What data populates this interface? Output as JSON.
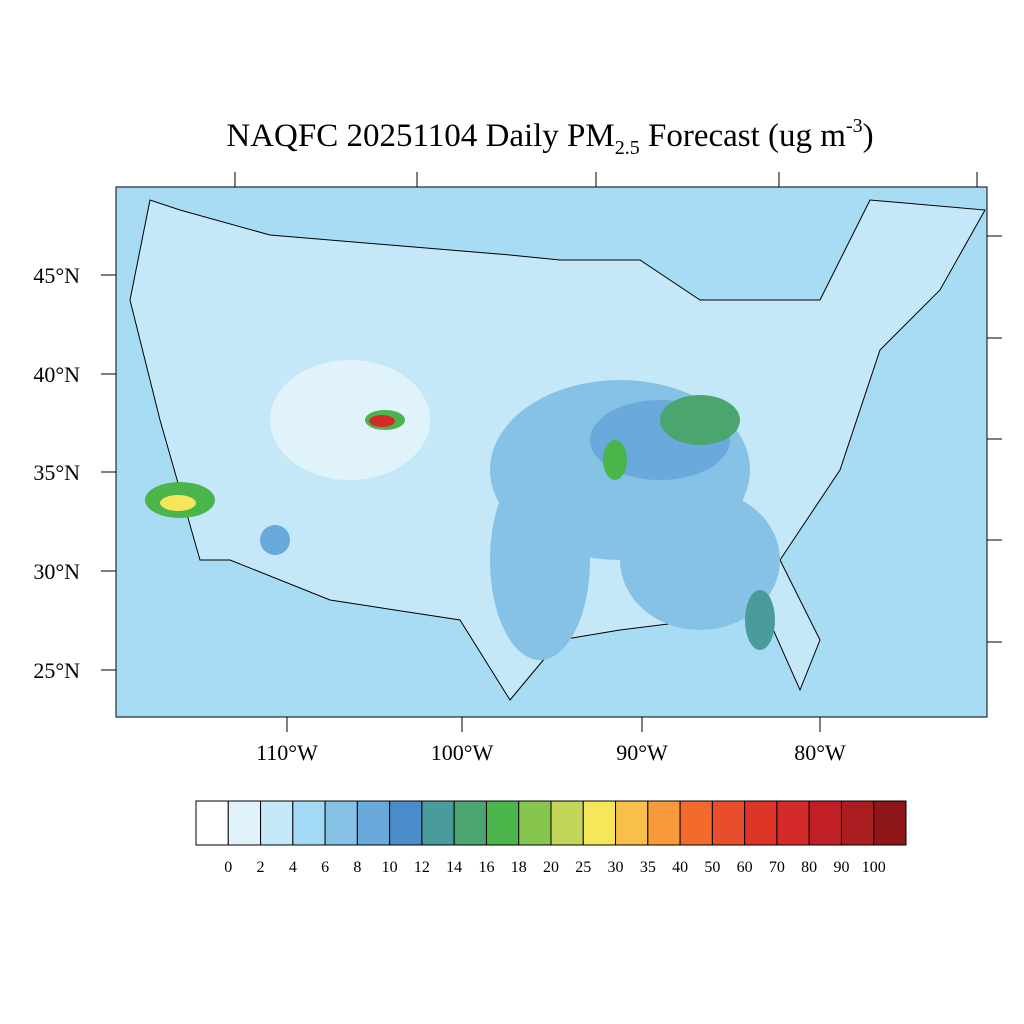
{
  "title": {
    "main": "NAQFC 20251104 Daily PM",
    "subscript": "2.5",
    "middle": " Forecast (ug m",
    "superscript": "-3",
    "end": ")"
  },
  "lat_labels": [
    "45°N",
    "40°N",
    "35°N",
    "30°N",
    "25°N"
  ],
  "lon_labels": [
    "110°W",
    "100°W",
    "90°W",
    "80°W"
  ],
  "colorbar": {
    "levels": [
      0,
      2,
      4,
      6,
      8,
      10,
      12,
      14,
      16,
      18,
      20,
      25,
      30,
      35,
      40,
      50,
      60,
      70,
      80,
      90,
      100
    ],
    "colors": [
      "#ffffff",
      "#e0f3fb",
      "#c5e8f8",
      "#a2d9f4",
      "#86c2e6",
      "#69a9db",
      "#4a8dca",
      "#4a9b9c",
      "#4aa66e",
      "#4ab54a",
      "#86c64e",
      "#c3d65a",
      "#f5e65a",
      "#f8c04a",
      "#f89a3c",
      "#f26b2d",
      "#e84e2c",
      "#dc3526",
      "#d42a2a",
      "#c01f26",
      "#ac1d22",
      "#8f1719"
    ]
  }
}
